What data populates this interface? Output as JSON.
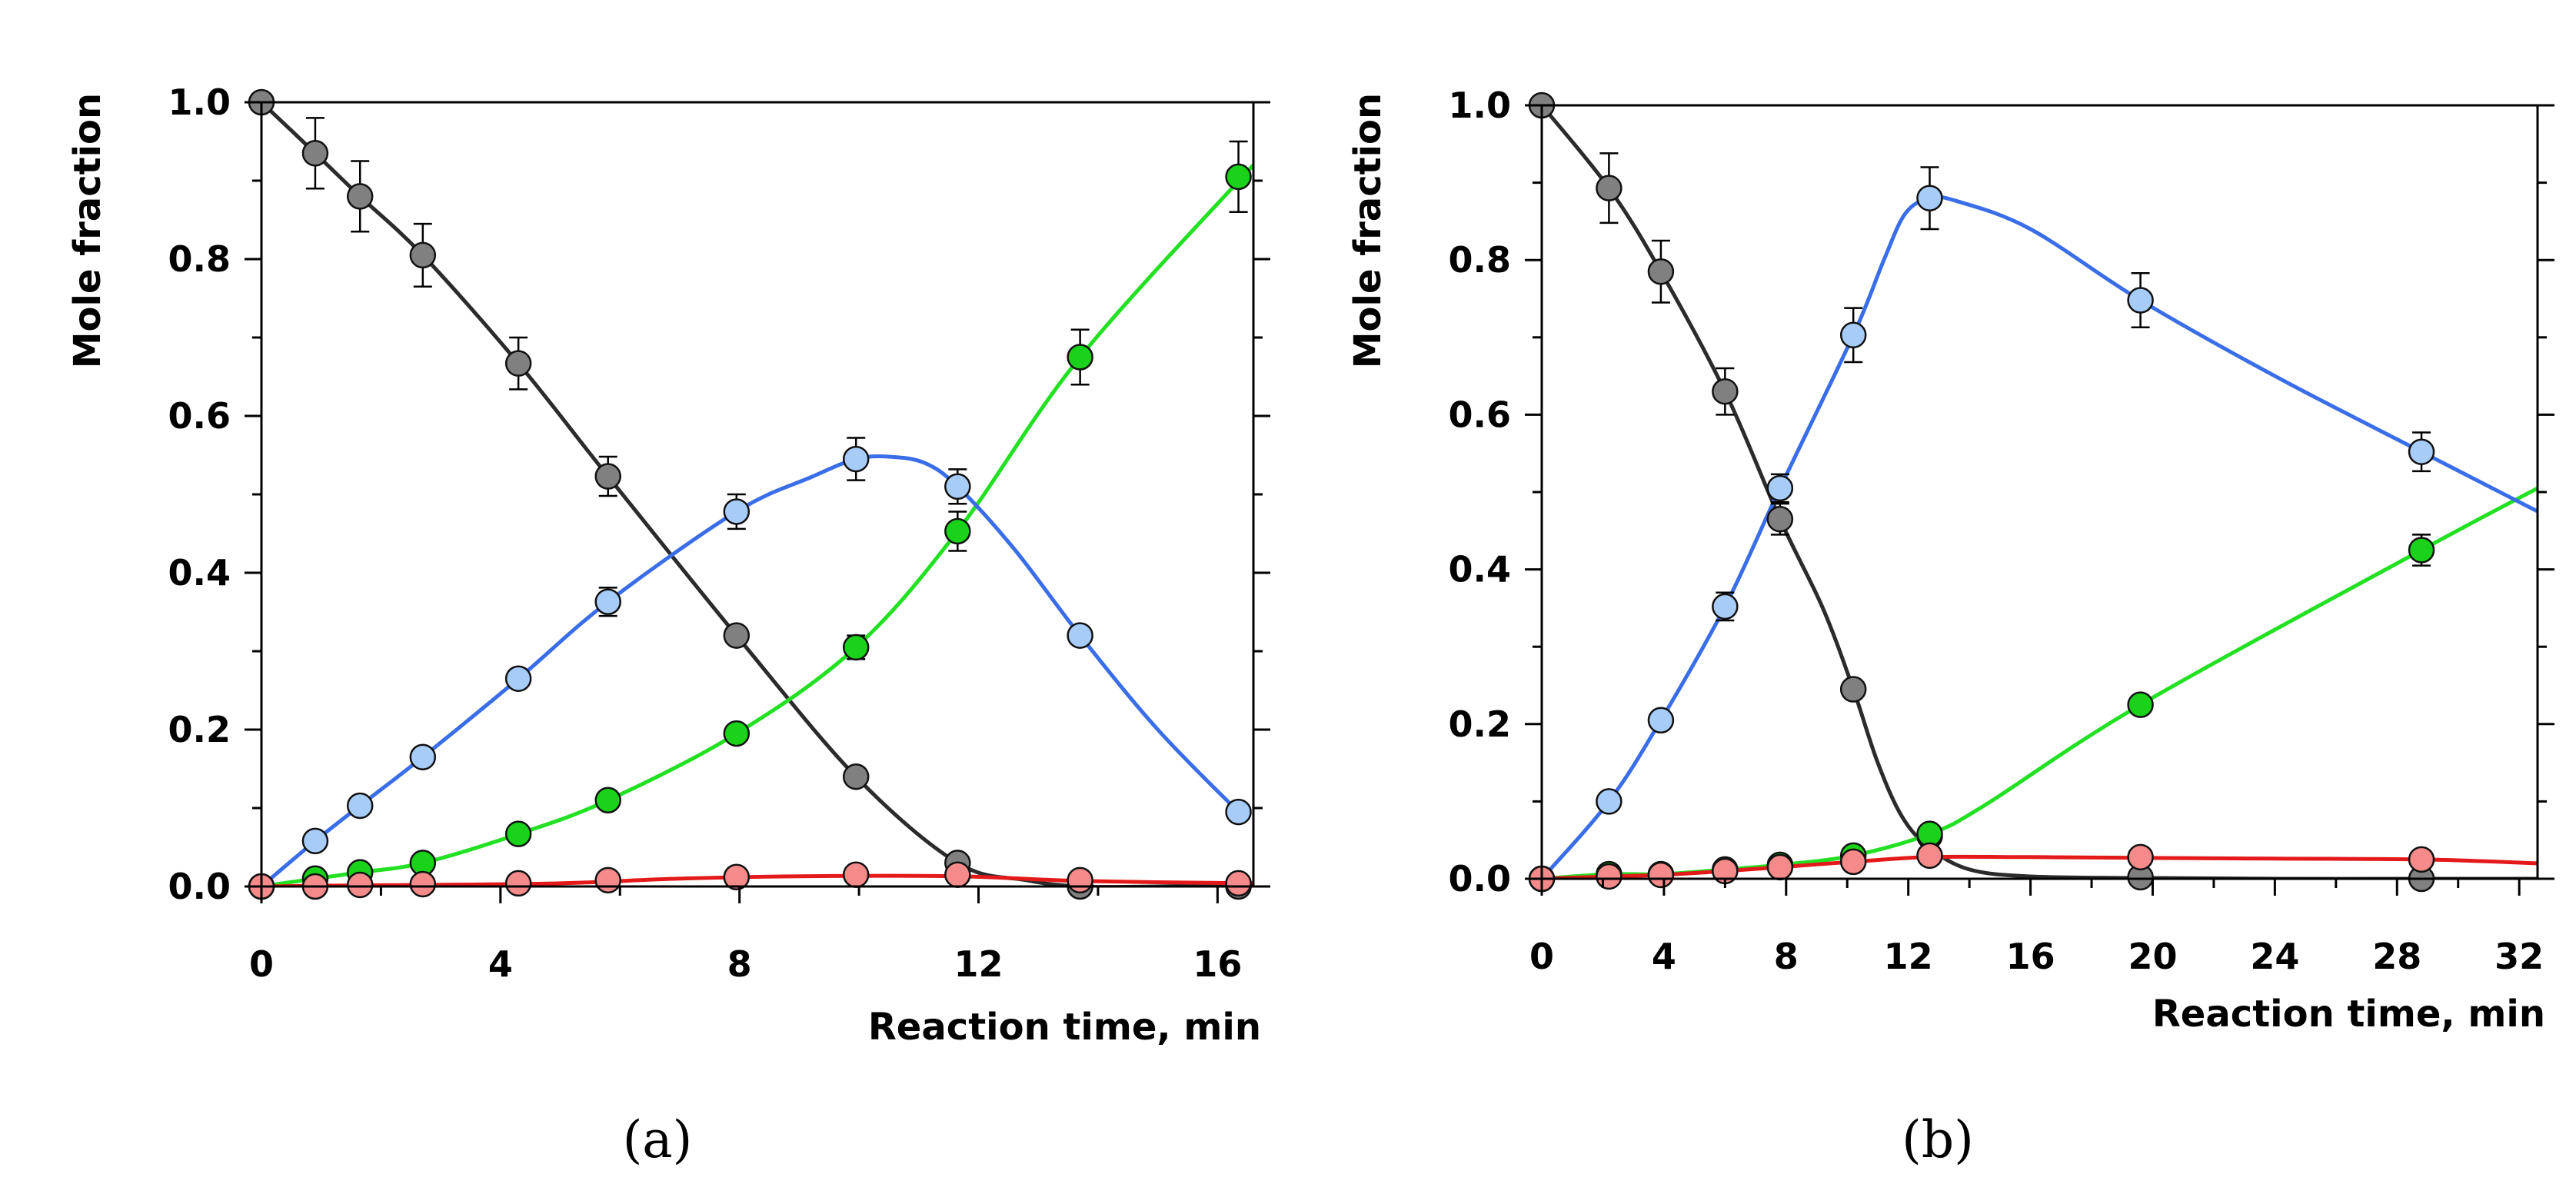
{
  "chart_data": [
    {
      "type": "line",
      "panel_label": "(a)",
      "xlabel": "Reaction time, min",
      "ylabel": "Mole fraction",
      "xlim": [
        0,
        16.6
      ],
      "ylim": [
        0,
        1.0
      ],
      "xticks": [
        0,
        4,
        8,
        12,
        16
      ],
      "yticks": [
        0.0,
        0.2,
        0.4,
        0.6,
        0.8,
        1.0
      ],
      "xtick_labels": [
        "0",
        "4",
        "8",
        "12",
        "16"
      ],
      "ytick_labels": [
        "0.0",
        "0.2",
        "0.4",
        "0.6",
        "0.8",
        "1.0"
      ],
      "series": [
        {
          "name": "grey",
          "line_color": "#2b2b2b",
          "marker_color": "#808080",
          "x": [
            0,
            0.9,
            1.65,
            2.7,
            4.3,
            5.8,
            7.95,
            9.95,
            11.65,
            13.7,
            16.35
          ],
          "y": [
            1.0,
            0.935,
            0.88,
            0.805,
            0.667,
            0.523,
            0.32,
            0.14,
            0.03,
            0.0,
            0.0
          ],
          "err": [
            0,
            0.045,
            0.045,
            0.04,
            0.033,
            0.025,
            0.01,
            0.01,
            0,
            0,
            0
          ],
          "curve_x": [
            0,
            0.9,
            1.65,
            2.7,
            4.3,
            5.8,
            7.95,
            9.95,
            11.65,
            12.8,
            13.7,
            15.0,
            16.6
          ],
          "curve_y": [
            1.0,
            0.935,
            0.88,
            0.805,
            0.667,
            0.523,
            0.32,
            0.14,
            0.03,
            0.008,
            0.0,
            0.0,
            0.003
          ]
        },
        {
          "name": "blue",
          "line_color": "#3a6ee8",
          "marker_color": "#a8ccf8",
          "x": [
            0,
            0.9,
            1.65,
            2.7,
            4.3,
            5.8,
            7.95,
            9.95,
            11.65,
            13.7,
            16.35
          ],
          "y": [
            0.0,
            0.058,
            0.103,
            0.165,
            0.265,
            0.363,
            0.478,
            0.545,
            0.51,
            0.32,
            0.095
          ],
          "err": [
            0,
            0,
            0,
            0,
            0,
            0.018,
            0.022,
            0.027,
            0.022,
            0,
            0
          ],
          "curve_x": [
            0,
            0.9,
            1.65,
            2.7,
            4.3,
            5.8,
            7.95,
            9.2,
            9.95,
            10.5,
            11.1,
            11.65,
            12.6,
            13.7,
            15.0,
            16.35
          ],
          "curve_y": [
            0.0,
            0.058,
            0.103,
            0.165,
            0.265,
            0.363,
            0.478,
            0.522,
            0.545,
            0.548,
            0.54,
            0.51,
            0.43,
            0.32,
            0.2,
            0.095
          ]
        },
        {
          "name": "green",
          "line_color": "#22e022",
          "marker_color": "#19d219",
          "x": [
            0,
            0.9,
            1.65,
            2.7,
            4.3,
            5.8,
            7.95,
            9.95,
            11.65,
            13.7,
            16.35
          ],
          "y": [
            0.0,
            0.01,
            0.018,
            0.03,
            0.067,
            0.11,
            0.195,
            0.305,
            0.453,
            0.675,
            0.905
          ],
          "err": [
            0,
            0,
            0,
            0,
            0,
            0,
            0,
            0.015,
            0.025,
            0.035,
            0.045
          ],
          "curve_x": [
            0,
            0.9,
            1.65,
            2.7,
            4.3,
            5.8,
            7.95,
            9.95,
            11.65,
            13.7,
            16.6
          ],
          "curve_y": [
            0.0,
            0.01,
            0.018,
            0.03,
            0.067,
            0.11,
            0.195,
            0.305,
            0.453,
            0.675,
            0.92
          ]
        },
        {
          "name": "red",
          "line_color": "#e41a1a",
          "marker_color": "#f58a8a",
          "x": [
            0,
            0.9,
            1.65,
            2.7,
            4.3,
            5.8,
            7.95,
            9.95,
            11.65,
            13.7,
            16.35
          ],
          "y": [
            0.0,
            0.0,
            0.002,
            0.003,
            0.004,
            0.008,
            0.012,
            0.015,
            0.015,
            0.008,
            0.004
          ],
          "err": [
            0,
            0,
            0,
            0,
            0,
            0,
            0,
            0,
            0,
            0,
            0
          ],
          "curve_x": [
            0,
            1.0,
            2.7,
            5.0,
            7.0,
            9.0,
            11.65,
            13.7,
            16.6
          ],
          "curve_y": [
            0.0,
            0.001,
            0.002,
            0.004,
            0.01,
            0.013,
            0.013,
            0.007,
            0.004
          ]
        }
      ]
    },
    {
      "type": "line",
      "panel_label": "(b)",
      "xlabel": "Reaction time, min",
      "ylabel": "Mole fraction",
      "xlim": [
        0,
        32.6
      ],
      "ylim": [
        0,
        1.0
      ],
      "xticks": [
        0,
        4,
        8,
        12,
        16,
        20,
        24,
        28,
        32
      ],
      "yticks": [
        0.0,
        0.2,
        0.4,
        0.6,
        0.8,
        1.0
      ],
      "xtick_labels": [
        "0",
        "4",
        "8",
        "12",
        "16",
        "20",
        "24",
        "28",
        "32"
      ],
      "ytick_labels": [
        "0.0",
        "0.2",
        "0.4",
        "0.6",
        "0.8",
        "1.0"
      ],
      "series": [
        {
          "name": "grey",
          "line_color": "#2b2b2b",
          "marker_color": "#808080",
          "x": [
            0,
            2.2,
            3.9,
            6.0,
            7.8,
            10.2,
            12.7,
            19.6,
            28.8
          ],
          "y": [
            1.0,
            0.893,
            0.785,
            0.63,
            0.465,
            0.245,
            0.055,
            0.002,
            0.0
          ],
          "err": [
            0,
            0.045,
            0.04,
            0.03,
            0.02,
            0,
            0,
            0,
            0
          ],
          "curve_x": [
            0,
            2.2,
            3.9,
            6.0,
            7.8,
            9.2,
            10.2,
            11.0,
            11.8,
            12.7,
            14.0,
            16.0,
            19.6,
            24.0,
            28.8,
            32.6
          ],
          "curve_y": [
            1.0,
            0.893,
            0.785,
            0.63,
            0.465,
            0.35,
            0.245,
            0.15,
            0.08,
            0.04,
            0.012,
            0.003,
            0.001,
            0.0,
            0.0,
            0.0
          ]
        },
        {
          "name": "blue",
          "line_color": "#3a6ee8",
          "marker_color": "#a8ccf8",
          "x": [
            0,
            2.2,
            3.9,
            6.0,
            7.8,
            10.2,
            12.7,
            19.6,
            28.8
          ],
          "y": [
            0.0,
            0.1,
            0.205,
            0.352,
            0.505,
            0.703,
            0.88,
            0.748,
            0.552
          ],
          "err": [
            0,
            0,
            0,
            0.018,
            0.018,
            0.035,
            0.04,
            0.035,
            0.025
          ],
          "curve_x": [
            0,
            2.2,
            3.9,
            6.0,
            7.8,
            10.2,
            11.2,
            11.9,
            12.7,
            13.6,
            16.0,
            19.6,
            24.0,
            28.8,
            32.6
          ],
          "curve_y": [
            0.0,
            0.1,
            0.205,
            0.352,
            0.505,
            0.703,
            0.8,
            0.86,
            0.88,
            0.876,
            0.84,
            0.748,
            0.65,
            0.552,
            0.475
          ]
        },
        {
          "name": "green",
          "line_color": "#22e022",
          "marker_color": "#19d219",
          "x": [
            0,
            2.2,
            3.9,
            6.0,
            7.8,
            10.2,
            12.7,
            19.6,
            28.8
          ],
          "y": [
            0.0,
            0.006,
            0.006,
            0.012,
            0.018,
            0.03,
            0.058,
            0.225,
            0.425
          ],
          "err": [
            0,
            0,
            0,
            0,
            0,
            0,
            0,
            0,
            0.02
          ],
          "curve_x": [
            0,
            2.2,
            3.9,
            6.0,
            7.8,
            10.2,
            12.7,
            14.5,
            19.6,
            28.8,
            32.6
          ],
          "curve_y": [
            0.0,
            0.006,
            0.006,
            0.012,
            0.018,
            0.03,
            0.058,
            0.095,
            0.225,
            0.425,
            0.505
          ]
        },
        {
          "name": "red",
          "line_color": "#e41a1a",
          "marker_color": "#f58a8a",
          "x": [
            0,
            2.2,
            3.9,
            6.0,
            7.8,
            10.2,
            12.7,
            19.6,
            28.8
          ],
          "y": [
            0.0,
            0.003,
            0.005,
            0.01,
            0.015,
            0.022,
            0.03,
            0.028,
            0.025
          ],
          "err": [
            0,
            0,
            0,
            0,
            0,
            0,
            0,
            0,
            0
          ],
          "curve_x": [
            0,
            2.2,
            3.9,
            6.0,
            7.8,
            10.2,
            12.7,
            16.0,
            19.6,
            24.0,
            28.8,
            32.6
          ],
          "curve_y": [
            0.0,
            0.003,
            0.005,
            0.01,
            0.015,
            0.022,
            0.028,
            0.028,
            0.027,
            0.026,
            0.025,
            0.02
          ]
        }
      ]
    }
  ]
}
